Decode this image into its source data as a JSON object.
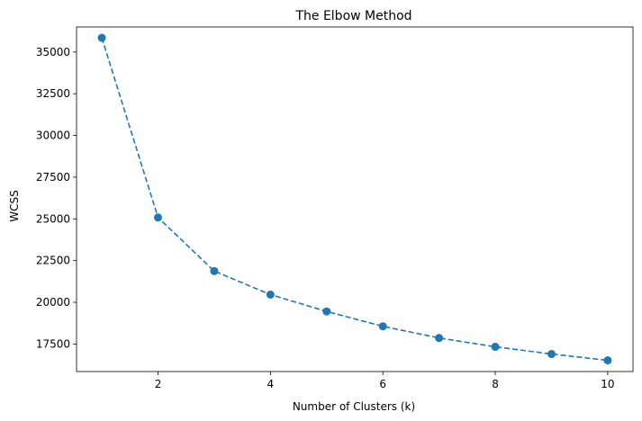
{
  "chart_data": {
    "type": "line",
    "title": "The Elbow Method",
    "xlabel": "Number of Clusters (k)",
    "ylabel": "WCSS",
    "x": [
      1,
      2,
      3,
      4,
      5,
      6,
      7,
      8,
      9,
      10
    ],
    "series": [
      {
        "values": [
          35850,
          25080,
          21870,
          20460,
          19450,
          18560,
          17860,
          17330,
          16900,
          16520
        ],
        "color": "#1f77b4",
        "line_style": "dashed",
        "marker": "circle"
      }
    ],
    "xlim": [
      0.55,
      10.45
    ],
    "ylim": [
      15850,
      36500
    ],
    "xticks": [
      2,
      4,
      6,
      8,
      10
    ],
    "yticks": [
      17500,
      20000,
      22500,
      25000,
      27500,
      30000,
      32500,
      35000
    ],
    "grid": false,
    "legend": false
  }
}
